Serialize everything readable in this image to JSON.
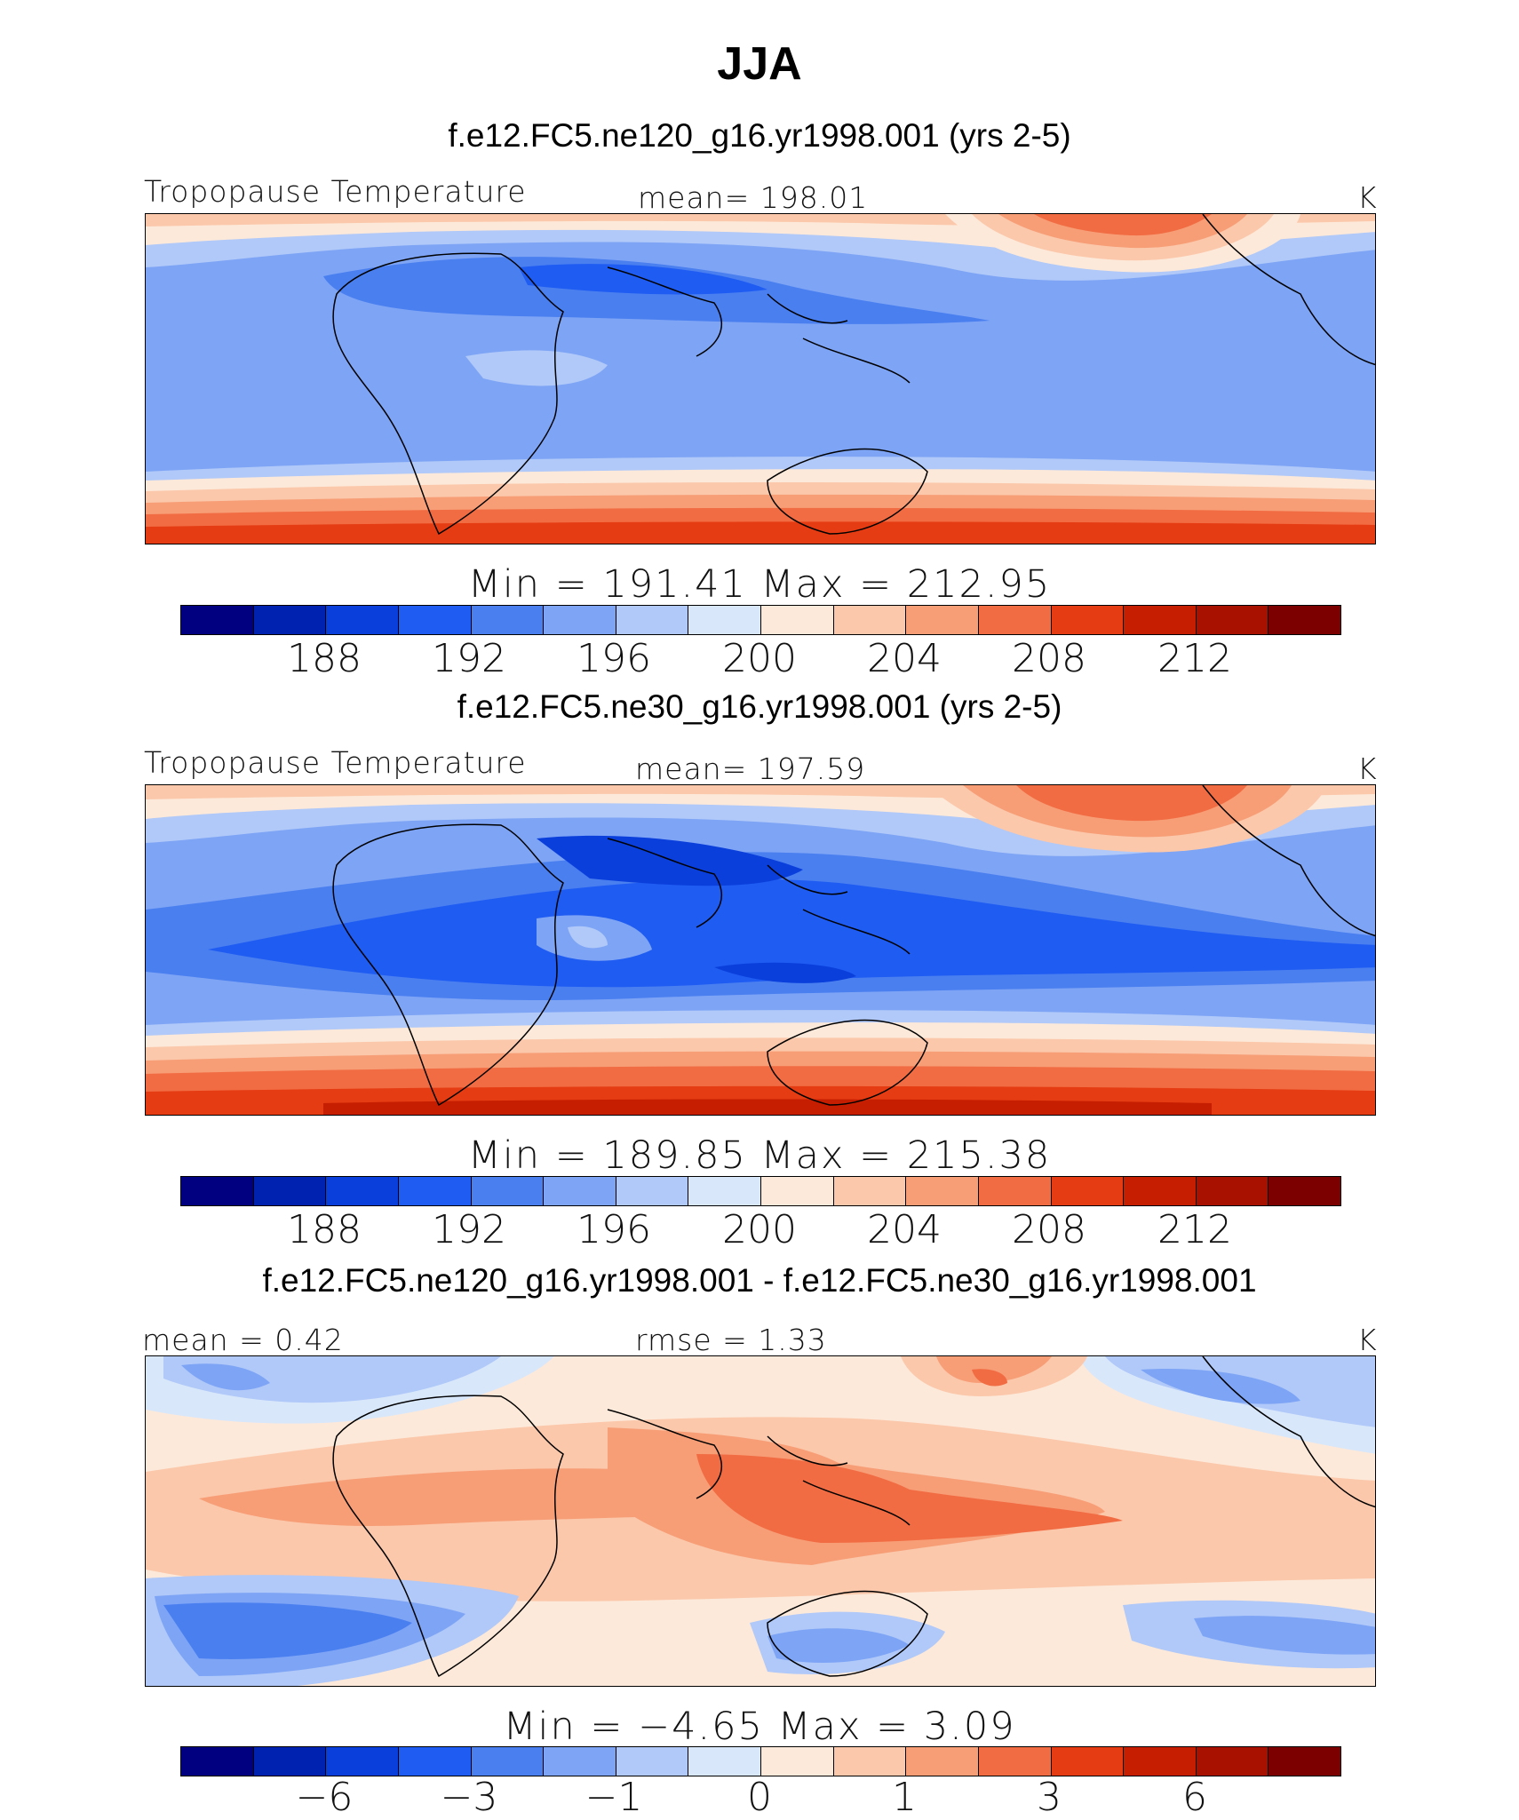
{
  "title": "JJA",
  "colors": [
    "#000080",
    "#0022b0",
    "#0a3fdc",
    "#1f5cf2",
    "#4a7ff0",
    "#7ea4f5",
    "#b0c9f8",
    "#d9e7fb",
    "#fde9d9",
    "#fbc8ab",
    "#f79e77",
    "#f26c43",
    "#e53c13",
    "#c51e00",
    "#a81100",
    "#7d0000"
  ],
  "panels": [
    {
      "case": "f.e12.FC5.ne120_g16.yr1998.001 (yrs 2-5)",
      "variable": "Tropopause Temperature",
      "stat": "mean=  198.01",
      "units": "K",
      "minmax": "Min  =  191.41  Max  =  212.95",
      "ticks": [
        "188",
        "192",
        "196",
        "200",
        "204",
        "208",
        "212"
      ]
    },
    {
      "case": "f.e12.FC5.ne30_g16.yr1998.001 (yrs 2-5)",
      "variable": "Tropopause Temperature",
      "stat": "mean=  197.59",
      "units": "K",
      "minmax": "Min  =  189.85  Max  =  215.38",
      "ticks": [
        "188",
        "192",
        "196",
        "200",
        "204",
        "208",
        "212"
      ]
    },
    {
      "case": "f.e12.FC5.ne120_g16.yr1998.001 - f.e12.FC5.ne30_g16.yr1998.001",
      "stat_left": "mean  =     0.42",
      "stat": "rmse  =     1.33",
      "units": "K",
      "minmax": "Min  =   −4.65  Max  =      3.09",
      "ticks": [
        "−6",
        "−3",
        "−1",
        "0",
        "1",
        "3",
        "6"
      ]
    }
  ],
  "chart_data": [
    {
      "type": "heatmap",
      "title": "f.e12.FC5.ne120_g16.yr1998.001 (yrs 2-5)",
      "variable": "Tropopause Temperature",
      "units": "K",
      "season": "JJA",
      "mean": 198.01,
      "min": 191.41,
      "max": 212.95,
      "colorbar_levels": [
        186,
        188,
        190,
        192,
        194,
        196,
        198,
        200,
        202,
        204,
        206,
        208,
        210,
        212,
        214
      ],
      "colorbar_tick_labels": [
        188,
        192,
        196,
        200,
        204,
        208,
        212
      ]
    },
    {
      "type": "heatmap",
      "title": "f.e12.FC5.ne30_g16.yr1998.001 (yrs 2-5)",
      "variable": "Tropopause Temperature",
      "units": "K",
      "season": "JJA",
      "mean": 197.59,
      "min": 189.85,
      "max": 215.38,
      "colorbar_levels": [
        186,
        188,
        190,
        192,
        194,
        196,
        198,
        200,
        202,
        204,
        206,
        208,
        210,
        212,
        214
      ],
      "colorbar_tick_labels": [
        188,
        192,
        196,
        200,
        204,
        208,
        212
      ]
    },
    {
      "type": "heatmap",
      "title": "f.e12.FC5.ne120_g16.yr1998.001 - f.e12.FC5.ne30_g16.yr1998.001",
      "units": "K",
      "season": "JJA",
      "mean": 0.42,
      "rmse": 1.33,
      "min": -4.65,
      "max": 3.09,
      "colorbar_tick_labels": [
        -6,
        -3,
        -1,
        0,
        1,
        3,
        6
      ]
    }
  ]
}
